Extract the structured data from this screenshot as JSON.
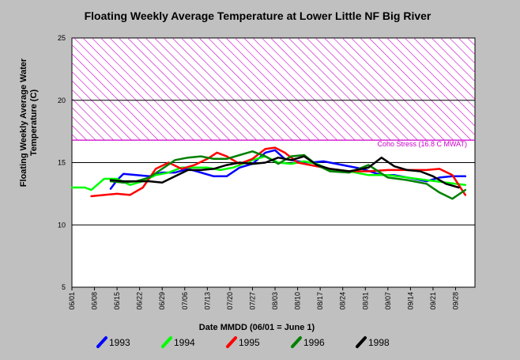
{
  "chart_data": {
    "type": "line",
    "title": "Floating Weekly Average Temperature at Lower Little NF Big River",
    "xlabel": "Date MMDD (06/01 = June 1)",
    "ylabel_lines": [
      "Floating Weekly Average Water",
      "Temperature (C)"
    ],
    "x_ticks": [
      "06/01",
      "06/08",
      "06/15",
      "06/22",
      "06/29",
      "07/06",
      "07/13",
      "07/20",
      "07/27",
      "08/03",
      "08/10",
      "08/17",
      "08/24",
      "08/31",
      "09/07",
      "09/14",
      "09/21",
      "09/28"
    ],
    "x_days": [
      0,
      7,
      14,
      21,
      28,
      35,
      42,
      49,
      56,
      63,
      70,
      77,
      84,
      91,
      98,
      105,
      112,
      119
    ],
    "xlim": [
      0,
      125
    ],
    "ylim": [
      5,
      25
    ],
    "y_ticks": [
      5,
      10,
      15,
      20,
      25
    ],
    "grid": "horizontal at 10, 15, 20",
    "stress_zone": {
      "from": 16.8,
      "to": 25,
      "color": "#cc00cc",
      "label": "Coho Stress (16.8 C MWAT)"
    },
    "series": [
      {
        "name": "1993",
        "color": "#0000ff",
        "x": [
          12,
          14,
          16,
          20,
          24,
          28,
          32,
          36,
          40,
          44,
          48,
          52,
          56,
          60,
          63,
          66,
          70,
          74,
          78,
          84,
          90,
          96,
          100,
          104,
          110,
          114,
          118,
          122
        ],
        "y": [
          12.9,
          13.6,
          14.1,
          14.0,
          13.9,
          14.2,
          14.2,
          14.5,
          14.2,
          13.9,
          13.9,
          14.6,
          14.9,
          15.8,
          16.0,
          15.3,
          15.1,
          15.0,
          15.1,
          14.8,
          14.5,
          14.0,
          14.0,
          13.8,
          13.5,
          13.8,
          13.9,
          13.9
        ]
      },
      {
        "name": "1994",
        "color": "#00ff00",
        "x": [
          0,
          4,
          6,
          10,
          14,
          18,
          22,
          26,
          30,
          34,
          38,
          42,
          46,
          50,
          56,
          60,
          64,
          68,
          72,
          76,
          80,
          86,
          92,
          98,
          104,
          110,
          116,
          122
        ],
        "y": [
          13.0,
          13.0,
          12.8,
          13.7,
          13.7,
          13.2,
          13.5,
          14.0,
          14.2,
          14.6,
          14.6,
          14.6,
          14.4,
          14.6,
          15.2,
          15.5,
          15.0,
          14.9,
          15.1,
          14.9,
          14.4,
          14.3,
          14.0,
          14.0,
          13.8,
          13.6,
          13.4,
          13.2
        ]
      },
      {
        "name": "1995",
        "color": "#ff0000",
        "x": [
          6,
          10,
          14,
          18,
          22,
          26,
          30,
          34,
          38,
          42,
          45,
          48,
          52,
          56,
          60,
          63,
          66,
          70,
          74,
          80,
          86,
          92,
          98,
          104,
          110,
          114,
          118,
          122
        ],
        "y": [
          12.3,
          12.4,
          12.5,
          12.4,
          13.0,
          14.5,
          15.0,
          14.5,
          14.8,
          15.3,
          15.8,
          15.5,
          14.9,
          15.3,
          16.1,
          16.2,
          15.8,
          15.0,
          14.8,
          14.5,
          14.3,
          14.3,
          14.4,
          14.4,
          14.4,
          14.5,
          14.0,
          12.4
        ]
      },
      {
        "name": "1996",
        "color": "#008000",
        "x": [
          12,
          16,
          20,
          24,
          28,
          32,
          36,
          40,
          44,
          48,
          52,
          56,
          60,
          64,
          68,
          72,
          76,
          80,
          86,
          92,
          98,
          104,
          110,
          114,
          118,
          122
        ],
        "y": [
          13.5,
          13.4,
          13.5,
          13.8,
          14.5,
          15.2,
          15.4,
          15.5,
          15.3,
          15.3,
          15.6,
          15.9,
          15.5,
          14.9,
          15.5,
          15.6,
          14.8,
          14.3,
          14.2,
          14.8,
          13.8,
          13.6,
          13.3,
          12.6,
          12.1,
          12.8
        ]
      },
      {
        "name": "1998",
        "color": "#000000",
        "x": [
          12,
          16,
          20,
          24,
          28,
          32,
          36,
          40,
          44,
          48,
          52,
          56,
          60,
          64,
          68,
          72,
          76,
          80,
          86,
          92,
          96,
          100,
          104,
          108,
          112,
          116,
          120
        ],
        "y": [
          13.6,
          13.5,
          13.5,
          13.5,
          13.4,
          13.9,
          14.4,
          14.4,
          14.5,
          14.8,
          15.0,
          14.9,
          15.0,
          15.4,
          15.2,
          15.5,
          14.8,
          14.5,
          14.3,
          14.6,
          15.4,
          14.7,
          14.4,
          14.3,
          13.9,
          13.3,
          13.0
        ]
      }
    ]
  }
}
